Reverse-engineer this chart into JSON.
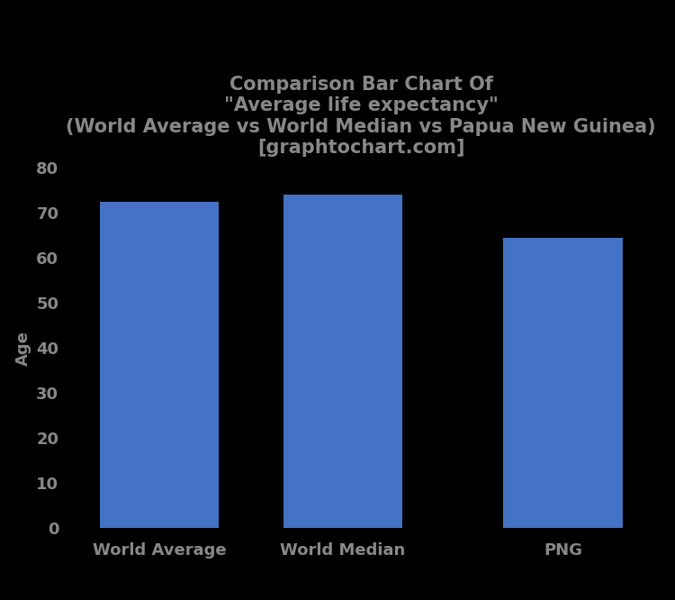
{
  "categories": [
    "World Average",
    "World Median",
    "PNG"
  ],
  "values": [
    72.5,
    74.0,
    64.5
  ],
  "bar_color": "#4472C4",
  "title_line1": "Comparison Bar Chart Of",
  "title_line2": "\"Average life expectancy\"",
  "title_line3": "(World Average vs World Median vs Papua New Guinea)",
  "title_line4": "[graphtochart.com]",
  "ylabel": "Age",
  "ylim": [
    0,
    80
  ],
  "yticks": [
    0,
    10,
    20,
    30,
    40,
    50,
    60,
    70,
    80
  ],
  "background_color": "#000000",
  "text_color": "#888888",
  "title_fontsize": 15,
  "axis_label_fontsize": 13,
  "tick_fontsize": 13,
  "bar_width": 0.65,
  "x_positions": [
    0,
    1,
    2.2
  ]
}
